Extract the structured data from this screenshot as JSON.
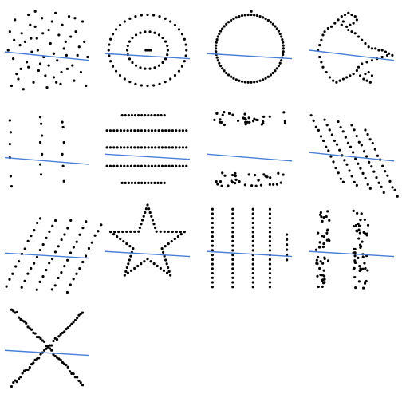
{
  "colors": {
    "background": "#ffffff",
    "points": "#000000",
    "regression_line": "#4a7fd8"
  },
  "chart_data": {
    "type": "scatter",
    "layout": {
      "rows": 4,
      "cols": 4,
      "panels": 13
    },
    "axes_visible": false,
    "grid": false,
    "xlim": [
      0,
      100
    ],
    "ylim": [
      0,
      100
    ],
    "panels": [
      {
        "id": "scatter-blob",
        "regression": {
          "x": [
            0,
            100
          ],
          "y": [
            48,
            38
          ]
        },
        "points": [
          [
            8,
            8
          ],
          [
            14,
            22
          ],
          [
            22,
            4
          ],
          [
            28,
            30
          ],
          [
            34,
            12
          ],
          [
            40,
            26
          ],
          [
            50,
            6
          ],
          [
            58,
            18
          ],
          [
            66,
            10
          ],
          [
            74,
            28
          ],
          [
            82,
            14
          ],
          [
            90,
            24
          ],
          [
            96,
            8
          ],
          [
            10,
            40
          ],
          [
            18,
            56
          ],
          [
            26,
            36
          ],
          [
            32,
            48
          ],
          [
            38,
            64
          ],
          [
            46,
            42
          ],
          [
            54,
            58
          ],
          [
            62,
            38
          ],
          [
            70,
            52
          ],
          [
            78,
            66
          ],
          [
            86,
            44
          ],
          [
            94,
            60
          ],
          [
            6,
            72
          ],
          [
            12,
            86
          ],
          [
            20,
            70
          ],
          [
            28,
            92
          ],
          [
            36,
            78
          ],
          [
            44,
            88
          ],
          [
            52,
            74
          ],
          [
            60,
            94
          ],
          [
            68,
            80
          ],
          [
            76,
            90
          ],
          [
            84,
            72
          ],
          [
            92,
            84
          ],
          [
            16,
            16
          ],
          [
            42,
            34
          ],
          [
            58,
            46
          ],
          [
            72,
            60
          ],
          [
            30,
            80
          ],
          [
            48,
            20
          ],
          [
            64,
            68
          ],
          [
            80,
            32
          ],
          [
            24,
            60
          ],
          [
            88,
            54
          ],
          [
            36,
            96
          ],
          [
            56,
            84
          ],
          [
            4,
            50
          ],
          [
            98,
            42
          ],
          [
            45,
            70
          ],
          [
            67,
            24
          ],
          [
            19,
            28
          ],
          [
            83,
            88
          ],
          [
            52,
            32
          ],
          [
            31,
            64
          ],
          [
            73,
            44
          ],
          [
            11,
            62
          ],
          [
            61,
            12
          ],
          [
            39,
            50
          ]
        ]
      },
      {
        "id": "scatter-bullseye",
        "regression": {
          "x": [
            0,
            100
          ],
          "y": [
            46,
            40
          ]
        },
        "points": "rings"
      },
      {
        "id": "scatter-circle",
        "regression": {
          "x": [
            0,
            100
          ],
          "y": [
            46,
            40
          ]
        },
        "points": "circle"
      },
      {
        "id": "scatter-dino",
        "regression": {
          "x": [
            0,
            100
          ],
          "y": [
            50,
            38
          ]
        },
        "points": [
          [
            10,
            50
          ],
          [
            12,
            56
          ],
          [
            14,
            62
          ],
          [
            16,
            68
          ],
          [
            18,
            72
          ],
          [
            22,
            76
          ],
          [
            26,
            78
          ],
          [
            30,
            82
          ],
          [
            34,
            86
          ],
          [
            38,
            90
          ],
          [
            42,
            92
          ],
          [
            46,
            94
          ],
          [
            50,
            92
          ],
          [
            54,
            90
          ],
          [
            56,
            86
          ],
          [
            52,
            82
          ],
          [
            48,
            80
          ],
          [
            44,
            78
          ],
          [
            46,
            74
          ],
          [
            50,
            72
          ],
          [
            54,
            70
          ],
          [
            58,
            66
          ],
          [
            62,
            62
          ],
          [
            66,
            58
          ],
          [
            70,
            54
          ],
          [
            74,
            52
          ],
          [
            78,
            52
          ],
          [
            82,
            50
          ],
          [
            86,
            50
          ],
          [
            90,
            48
          ],
          [
            94,
            46
          ],
          [
            98,
            44
          ],
          [
            92,
            44
          ],
          [
            86,
            42
          ],
          [
            80,
            40
          ],
          [
            74,
            38
          ],
          [
            68,
            36
          ],
          [
            62,
            34
          ],
          [
            58,
            30
          ],
          [
            56,
            26
          ],
          [
            52,
            22
          ],
          [
            48,
            20
          ],
          [
            44,
            18
          ],
          [
            40,
            16
          ],
          [
            36,
            14
          ],
          [
            32,
            12
          ],
          [
            28,
            14
          ],
          [
            24,
            18
          ],
          [
            20,
            24
          ],
          [
            16,
            30
          ],
          [
            14,
            36
          ],
          [
            12,
            42
          ],
          [
            60,
            20
          ],
          [
            64,
            16
          ],
          [
            68,
            14
          ],
          [
            72,
            12
          ],
          [
            66,
            22
          ],
          [
            70,
            24
          ],
          [
            74,
            20
          ],
          [
            40,
            84
          ],
          [
            38,
            80
          ]
        ]
      },
      {
        "id": "scatter-dots",
        "regression": {
          "x": [
            0,
            100
          ],
          "y": [
            40,
            32
          ]
        },
        "points": [
          [
            6,
            84
          ],
          [
            7,
            70
          ],
          [
            6,
            56
          ],
          [
            6,
            40
          ],
          [
            7,
            18
          ],
          [
            8,
            6
          ],
          [
            42,
            88
          ],
          [
            43,
            80
          ],
          [
            44,
            66
          ],
          [
            42,
            58
          ],
          [
            44,
            44
          ],
          [
            42,
            32
          ],
          [
            43,
            20
          ],
          [
            68,
            82
          ],
          [
            69,
            76
          ],
          [
            70,
            58
          ],
          [
            68,
            44
          ],
          [
            69,
            30
          ],
          [
            70,
            12
          ]
        ]
      },
      {
        "id": "scatter-h-lines",
        "regression": {
          "x": [
            0,
            100
          ],
          "y": [
            44,
            38
          ]
        },
        "points": "hlines"
      },
      {
        "id": "scatter-high-lines",
        "regression": {
          "x": [
            0,
            100
          ],
          "y": [
            44,
            36
          ]
        },
        "points": "highlines"
      },
      {
        "id": "scatter-slant-down",
        "regression": {
          "x": [
            0,
            100
          ],
          "y": [
            46,
            36
          ]
        },
        "points": "slantdown"
      },
      {
        "id": "scatter-slant-up",
        "regression": {
          "x": [
            0,
            100
          ],
          "y": [
            44,
            38
          ]
        },
        "points": "slantup"
      },
      {
        "id": "scatter-star",
        "regression": {
          "x": [
            0,
            100
          ],
          "y": [
            46,
            40
          ]
        },
        "points": "star"
      },
      {
        "id": "scatter-v-lines",
        "regression": {
          "x": [
            0,
            100
          ],
          "y": [
            46,
            40
          ]
        },
        "points": "vlines"
      },
      {
        "id": "scatter-wide-lines",
        "regression": {
          "x": [
            0,
            100
          ],
          "y": [
            46,
            40
          ]
        },
        "points": "widelines"
      },
      {
        "id": "scatter-x-shape",
        "regression": {
          "x": [
            0,
            100
          ],
          "y": [
            46,
            40
          ]
        },
        "points": "xshape"
      }
    ]
  }
}
